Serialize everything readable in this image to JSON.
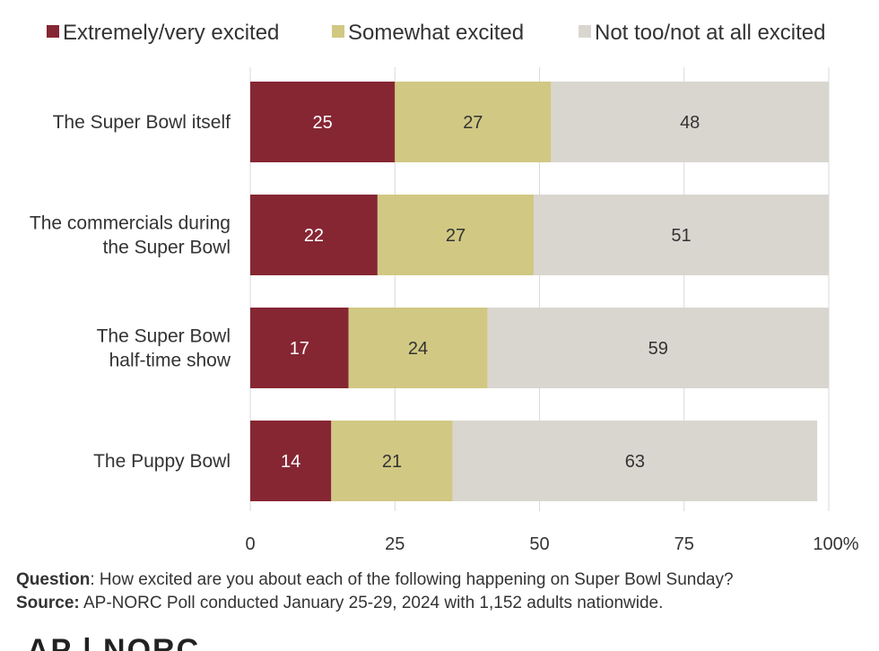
{
  "chart_data": {
    "type": "bar",
    "orientation": "horizontal",
    "stacked": true,
    "categories": [
      "The Super Bowl itself",
      "The commercials during the Super Bowl",
      "The Super Bowl half-time show",
      "The Puppy Bowl"
    ],
    "category_lines": [
      [
        "The Super Bowl itself"
      ],
      [
        "The commercials during",
        "the Super Bowl"
      ],
      [
        "The Super Bowl",
        "half-time show"
      ],
      [
        "The Puppy Bowl"
      ]
    ],
    "series": [
      {
        "name": "Extremely/very excited",
        "color": "#862633",
        "label_color": "#ffffff",
        "values": [
          25,
          22,
          17,
          14
        ]
      },
      {
        "name": "Somewhat excited",
        "color": "#d1c883",
        "label_color": "#333333",
        "values": [
          27,
          27,
          24,
          21
        ]
      },
      {
        "name": "Not too/not at all excited",
        "color": "#d9d6d0",
        "label_color": "#333333",
        "values": [
          48,
          51,
          59,
          63
        ]
      }
    ],
    "xlim": [
      0,
      100
    ],
    "xticks": [
      0,
      25,
      50,
      75,
      100
    ],
    "xtick_labels": [
      "0",
      "25",
      "50",
      "75",
      "100%"
    ],
    "grid": true,
    "legend": "top"
  },
  "footer": {
    "question_label": "Question",
    "question_text": ": How excited are you about each of the following happening on Super Bowl Sunday?",
    "source_label": "Source:",
    "source_text": " AP-NORC Poll conducted January 25-29, 2024 with 1,152 adults nationwide."
  },
  "logo_text": "AP  | NORC"
}
